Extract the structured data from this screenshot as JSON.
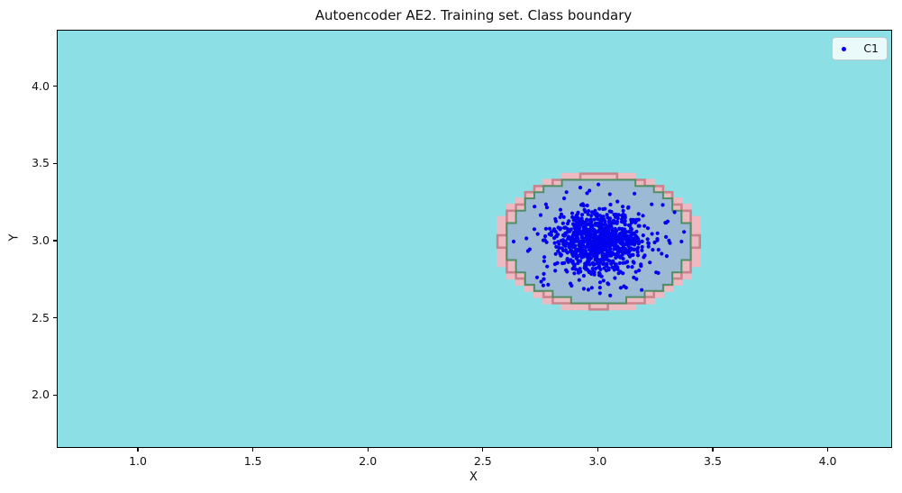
{
  "figure": {
    "title": "Autoencoder AE2. Training set. Class boundary",
    "xlabel": "X",
    "ylabel": "Y",
    "legend": {
      "entries": [
        {
          "label": "C1",
          "marker": "dot",
          "color": "#0202ee"
        }
      ],
      "position": "upper right"
    }
  },
  "chart_data": {
    "type": "scatter",
    "title": "Autoencoder AE2. Training set. Class boundary",
    "xlabel": "X",
    "ylabel": "Y",
    "xlim": [
      0.647,
      4.272
    ],
    "ylim": [
      1.668,
      4.367
    ],
    "x_ticks": [
      1.0,
      1.5,
      2.0,
      2.5,
      3.0,
      3.5,
      4.0
    ],
    "x_tick_labels": [
      "1.0",
      "1.5",
      "2.0",
      "2.5",
      "3.0",
      "3.5",
      "4.0"
    ],
    "y_ticks": [
      2.0,
      2.5,
      3.0,
      3.5,
      4.0
    ],
    "y_tick_labels": [
      "2.0",
      "2.5",
      "3.0",
      "3.5",
      "4.0"
    ],
    "grid": false,
    "legend_position": "upper right",
    "axes_background_color": "#8cdfe4",
    "series": [
      {
        "name": "C1",
        "marker": "point",
        "color": "#0202ee",
        "marker_radius_px": 2.1,
        "cluster": {
          "center": [
            3.0,
            3.0
          ],
          "std_core": 0.095,
          "std_tail": 0.17,
          "tail_fraction": 0.12,
          "n": 1000,
          "seed": 7
        },
        "outlier_points": [
          [
            2.63,
            3.0
          ],
          [
            2.72,
            3.08
          ],
          [
            2.7,
            2.95
          ],
          [
            2.75,
            2.74
          ],
          [
            2.78,
            2.72
          ],
          [
            2.86,
            3.32
          ],
          [
            2.92,
            3.35
          ],
          [
            2.96,
            3.33
          ],
          [
            3.05,
            2.65
          ],
          [
            2.97,
            2.7
          ],
          [
            3.11,
            2.71
          ],
          [
            3.25,
            2.8
          ],
          [
            3.31,
            2.99
          ],
          [
            3.36,
            3.0
          ],
          [
            3.33,
            3.19
          ],
          [
            3.3,
            3.13
          ],
          [
            2.85,
            3.28
          ],
          [
            3.2,
            2.91
          ]
        ]
      }
    ],
    "decision_boundary": {
      "shape": "stepped_contour_ellipse",
      "center": [
        3.0,
        3.005
      ],
      "rx": 0.4,
      "ry": 0.405,
      "grid_step": 0.04,
      "inner_fill_color": "#9dbad5",
      "inner_line_color": "#4f8f63",
      "band_fill_color": "#eebac2",
      "band_line_color": "#c9838c",
      "band_offset": 0.044,
      "mid_offset": 0.022
    }
  },
  "layout_note": ""
}
